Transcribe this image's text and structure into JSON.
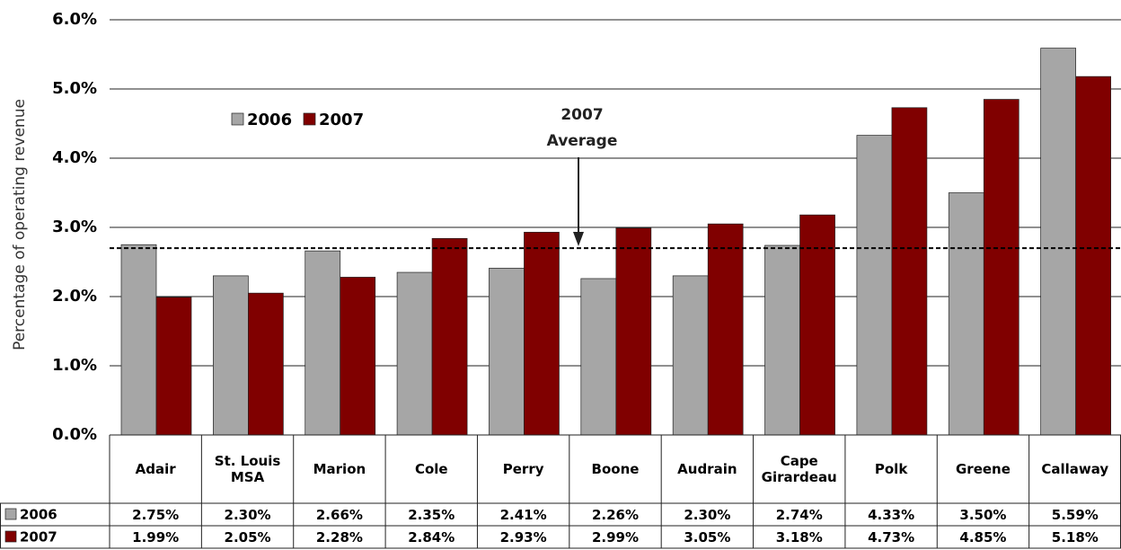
{
  "chart_data": {
    "type": "bar",
    "y_axis_label": "Percentage of operating revenue",
    "categories": [
      "Adair",
      "St. Louis MSA",
      "Marion",
      "Cole",
      "Perry",
      "Boone",
      "Audrain",
      "Cape Girardeau",
      "Polk",
      "Greene",
      "Callaway"
    ],
    "series": [
      {
        "name": "2006",
        "color": "#a6a6a6",
        "values": [
          2.75,
          2.3,
          2.66,
          2.35,
          2.41,
          2.26,
          2.3,
          2.74,
          4.33,
          3.5,
          5.59
        ],
        "value_labels": [
          "2.75%",
          "2.30%",
          "2.66%",
          "2.35%",
          "2.41%",
          "2.26%",
          "2.30%",
          "2.74%",
          "4.33%",
          "3.50%",
          "5.59%"
        ]
      },
      {
        "name": "2007",
        "color": "#800000",
        "values": [
          1.99,
          2.05,
          2.28,
          2.84,
          2.93,
          2.99,
          3.05,
          3.18,
          4.73,
          4.85,
          5.18
        ],
        "value_labels": [
          "1.99%",
          "2.05%",
          "2.28%",
          "2.84%",
          "2.93%",
          "2.99%",
          "3.05%",
          "3.18%",
          "4.73%",
          "4.85%",
          "5.18%"
        ]
      }
    ],
    "ylim": [
      0,
      6
    ],
    "yticks": [
      {
        "value": 0,
        "label": "0.0%"
      },
      {
        "value": 1,
        "label": "1.0%"
      },
      {
        "value": 2,
        "label": "2.0%"
      },
      {
        "value": 3,
        "label": "3.0%"
      },
      {
        "value": 4,
        "label": "4.0%"
      },
      {
        "value": 5,
        "label": "5.0%"
      },
      {
        "value": 6,
        "label": "6.0%"
      }
    ],
    "grid": true,
    "legend_position": "top-left",
    "average": 2.7,
    "annotation": [
      "2007",
      "Average"
    ]
  }
}
